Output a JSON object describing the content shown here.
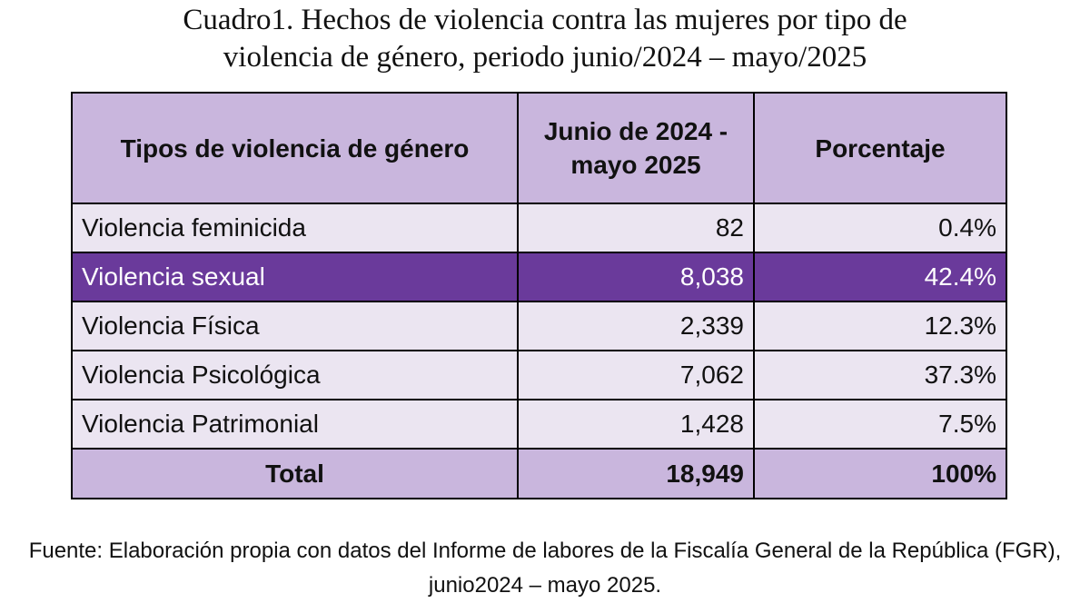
{
  "title": {
    "line1": "Cuadro1. Hechos de violencia contra las mujeres por tipo de",
    "line2": "violencia de género, periodo junio/2024 – mayo/2025"
  },
  "table": {
    "headers": [
      "Tipos de violencia de género",
      "Junio de 2024 - mayo 2025",
      "Porcentaje"
    ],
    "rows": [
      {
        "type": "Violencia feminicida",
        "count": "82",
        "percent": "0.4%"
      },
      {
        "type": "Violencia sexual",
        "count": "8,038",
        "percent": "42.4%"
      },
      {
        "type": "Violencia Física",
        "count": "2,339",
        "percent": "12.3%"
      },
      {
        "type": "Violencia Psicológica",
        "count": "7,062",
        "percent": "37.3%"
      },
      {
        "type": "Violencia Patrimonial",
        "count": "1,428",
        "percent": "7.5%"
      }
    ],
    "total": {
      "label": "Total",
      "count": "18,949",
      "percent": "100%"
    },
    "highlighted_row": "Violencia sexual"
  },
  "source": {
    "line1": "Fuente: Elaboración propia con datos del Informe de labores de la Fiscalía General de la República (FGR),",
    "line2": "junio2024 – mayo 2025."
  },
  "colors": {
    "header_bg": "#c9b6dd",
    "row_bg": "#ebe5f1",
    "highlight_bg": "#6a3a9b",
    "highlight_text": "#ffffff",
    "border": "#000000"
  }
}
